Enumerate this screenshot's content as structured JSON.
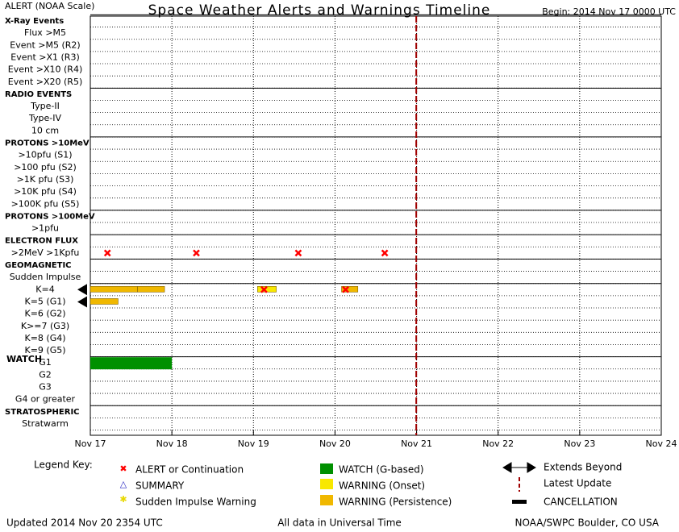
{
  "header": {
    "left": "ALERT (NOAA Scale)",
    "begin": "Begin: 2014 Nov 17 0000 UTC"
  },
  "chart_data": {
    "type": "timeline",
    "title": "Space Weather Alerts and Warnings Timeline",
    "xlim": [
      0,
      7
    ],
    "xticks": [
      {
        "value": 0,
        "label": "Nov 17"
      },
      {
        "value": 1,
        "label": "Nov 18"
      },
      {
        "value": 2,
        "label": "Nov 19"
      },
      {
        "value": 3,
        "label": "Nov 20"
      },
      {
        "value": 4,
        "label": "Nov 21"
      },
      {
        "value": 5,
        "label": "Nov 22"
      },
      {
        "value": 6,
        "label": "Nov 23"
      },
      {
        "value": 7,
        "label": "Nov 24"
      }
    ],
    "rows": [
      {
        "label": "X-Ray Events",
        "header": true
      },
      {
        "label": "Flux >M5"
      },
      {
        "label": "Event >M5 (R2)"
      },
      {
        "label": "Event >X1 (R3)"
      },
      {
        "label": "Event >X10 (R4)"
      },
      {
        "label": "Event >X20 (R5)"
      },
      {
        "label": "RADIO EVENTS",
        "header": true
      },
      {
        "label": "Type-II"
      },
      {
        "label": "Type-IV"
      },
      {
        "label": "10 cm"
      },
      {
        "label": "PROTONS >10MeV",
        "header": true
      },
      {
        "label": ">10pfu (S1)"
      },
      {
        "label": ">100 pfu (S2)"
      },
      {
        "label": ">1K pfu (S3)"
      },
      {
        "label": ">10K pfu (S4)"
      },
      {
        "label": ">100K pfu (S5)"
      },
      {
        "label": "PROTONS >100MeV",
        "header": true
      },
      {
        "label": ">1pfu"
      },
      {
        "label": "ELECTRON FLUX",
        "header": true
      },
      {
        "label": ">2MeV >1Kpfu"
      },
      {
        "label": "GEOMAGNETIC",
        "header": true
      },
      {
        "label": "Sudden Impulse"
      },
      {
        "label": "K=4"
      },
      {
        "label": "K=5 (G1)"
      },
      {
        "label": "K=6 (G2)"
      },
      {
        "label": "K>=7 (G3)"
      },
      {
        "label": "K=8 (G4)"
      },
      {
        "label": "K=9 (G5)"
      },
      {
        "label": "G1",
        "group": "WATCH"
      },
      {
        "label": "G2"
      },
      {
        "label": "G3"
      },
      {
        "label": "G4 or greater"
      },
      {
        "label": "STRATOSPHERIC",
        "header": true
      },
      {
        "label": "Stratwarm"
      }
    ],
    "alerts": [
      {
        "row": 19,
        "x": 0.21
      },
      {
        "row": 19,
        "x": 1.3
      },
      {
        "row": 19,
        "x": 2.55
      },
      {
        "row": 19,
        "x": 3.61
      },
      {
        "row": 22,
        "x": 2.13
      },
      {
        "row": 22,
        "x": 3.13
      }
    ],
    "bars": [
      {
        "row": 22,
        "start": 0,
        "end": 0.58,
        "color": "#f0b800",
        "extends": true
      },
      {
        "row": 22,
        "start": 0.58,
        "end": 0.91,
        "color": "#f0b800"
      },
      {
        "row": 22,
        "start": 2.05,
        "end": 2.28,
        "color": "#f8e800"
      },
      {
        "row": 22,
        "start": 3.08,
        "end": 3.28,
        "color": "#f0b800"
      },
      {
        "row": 23,
        "start": 0,
        "end": 0.34,
        "color": "#f0b800",
        "extends": true
      },
      {
        "row": 28,
        "start": 0,
        "end": 1.0,
        "color": "#009000"
      }
    ],
    "latest_update": 3.996,
    "latest_color": "#a00000"
  },
  "legend": {
    "title": "Legend Key:",
    "items": [
      "ALERT or Continuation",
      "SUMMARY",
      "Sudden Impulse Warning",
      "WATCH (G-based)",
      "WARNING (Onset)",
      "WARNING (Persistence)",
      "Extends Beyond",
      "Latest Update",
      "CANCELLATION"
    ]
  },
  "footer": {
    "updated": "Updated 2014 Nov 20 2354 UTC",
    "note": "All data in Universal Time",
    "source": "NOAA/SWPC Boulder, CO USA"
  }
}
